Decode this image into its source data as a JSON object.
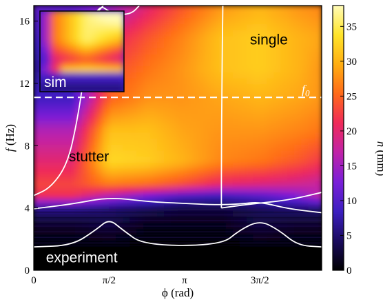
{
  "chart_data": {
    "type": "heatmap",
    "xlabel": "ϕ (rad)",
    "ylabel_italic": "f",
    "ylabel_unit": " (Hz)",
    "x_ticks": [
      {
        "value": 0,
        "label": "0"
      },
      {
        "value": 1.5708,
        "label": "π/2"
      },
      {
        "value": 3.1416,
        "label": "π"
      },
      {
        "value": 4.7124,
        "label": "3π/2"
      }
    ],
    "xlim": [
      0,
      6.0
    ],
    "ylim": [
      0,
      17
    ],
    "y_ticks": [
      {
        "value": 0,
        "label": "0"
      },
      {
        "value": 4,
        "label": "4"
      },
      {
        "value": 8,
        "label": "8"
      },
      {
        "value": 12,
        "label": "12"
      },
      {
        "value": 16,
        "label": "16"
      }
    ],
    "colorbar": {
      "label_italic": "h",
      "label_unit": " (mm)",
      "range": [
        0,
        38
      ],
      "ticks": [
        0,
        5,
        10,
        15,
        20,
        25,
        30,
        35
      ],
      "colormap": [
        "#000000",
        "#1a0a5e",
        "#3c1fc0",
        "#7a1fd8",
        "#c023a8",
        "#ef2a5a",
        "#ff6a1a",
        "#ffae12",
        "#ffe42a",
        "#fffbb8"
      ]
    },
    "reference_line": {
      "name": "f0",
      "label": "f",
      "label_sub": "0",
      "y": 11.1,
      "style": "dashed",
      "color": "#ffffff"
    },
    "regions": [
      {
        "name": "single",
        "label": "single",
        "x": 4.9,
        "y": 14.5
      },
      {
        "name": "stutter",
        "label": "stutter",
        "x": 1.15,
        "y": 7.0
      },
      {
        "name": "experiment",
        "label": "experiment",
        "x": 1.0,
        "y": 0.5
      }
    ],
    "boundaries": {
      "lower_floor": {
        "x": [
          0,
          0.8,
          1.3,
          1.5708,
          1.85,
          2.3,
          3.9,
          4.3,
          4.7124,
          5.1,
          5.5,
          6.0
        ],
        "y": [
          1.5,
          1.6,
          2.6,
          3.3,
          2.6,
          1.6,
          1.6,
          2.6,
          3.2,
          2.6,
          1.6,
          1.5
        ]
      },
      "stutter_lower": {
        "x": [
          0,
          0.8,
          1.5708,
          2.4,
          3.1,
          3.8,
          4.3,
          4.7124,
          5.3,
          6.0
        ],
        "y": [
          3.95,
          4.25,
          4.7,
          4.4,
          4.3,
          4.2,
          4.25,
          4.4,
          3.95,
          3.7
        ]
      },
      "stutter_left": {
        "x": [
          0,
          0.35,
          0.7,
          0.9,
          1.05,
          1.15,
          1.25,
          1.45
        ],
        "y": [
          4.8,
          5.3,
          6.8,
          9.5,
          12.5,
          15.0,
          16.3,
          17.0
        ]
      },
      "single_left": {
        "x": [
          3.91,
          3.91,
          3.92,
          3.94
        ],
        "y": [
          4.0,
          7.0,
          12.0,
          17.0
        ]
      },
      "single_lower": {
        "x": [
          3.91,
          4.5,
          5.3,
          6.0
        ],
        "y": [
          4.0,
          4.25,
          4.5,
          5.0
        ]
      },
      "top_arc": {
        "x": [
          1.25,
          1.4,
          1.5708,
          1.8,
          2.05,
          2.2
        ],
        "y": [
          16.3,
          17.0,
          16.6,
          16.4,
          16.5,
          17.0
        ]
      }
    },
    "intensity_field": [
      [
        0,
        0.8,
        1.5708,
        2.4,
        3.1,
        3.9,
        4.7124,
        5.5,
        6.0
      ],
      [
        17,
        11,
        14,
        20,
        24,
        28,
        30,
        28,
        27
      ],
      [
        15,
        9,
        20,
        24,
        27,
        31,
        32,
        30,
        29
      ],
      [
        13,
        7,
        23,
        26,
        28,
        31,
        32,
        30,
        28
      ],
      [
        11,
        9,
        25,
        28,
        28,
        29,
        30,
        29,
        28
      ],
      [
        9,
        16,
        31,
        31,
        29,
        28,
        28,
        27,
        26
      ],
      [
        7,
        20,
        33,
        32,
        30,
        27,
        26,
        24,
        22
      ],
      [
        5.5,
        23,
        26,
        25,
        23,
        20,
        19,
        18,
        17
      ],
      [
        4.8,
        21,
        16,
        12,
        9,
        8,
        10,
        13,
        17
      ],
      [
        4,
        6,
        5,
        4,
        3,
        3,
        4,
        5,
        5
      ],
      [
        3,
        2,
        3,
        1,
        1,
        1,
        3,
        2,
        2
      ],
      [
        1.5,
        0,
        0,
        0,
        0,
        0,
        0,
        0,
        0
      ],
      [
        0,
        0,
        0,
        0,
        0,
        0,
        0,
        0,
        0
      ]
    ],
    "inset": {
      "label": "sim"
    }
  }
}
